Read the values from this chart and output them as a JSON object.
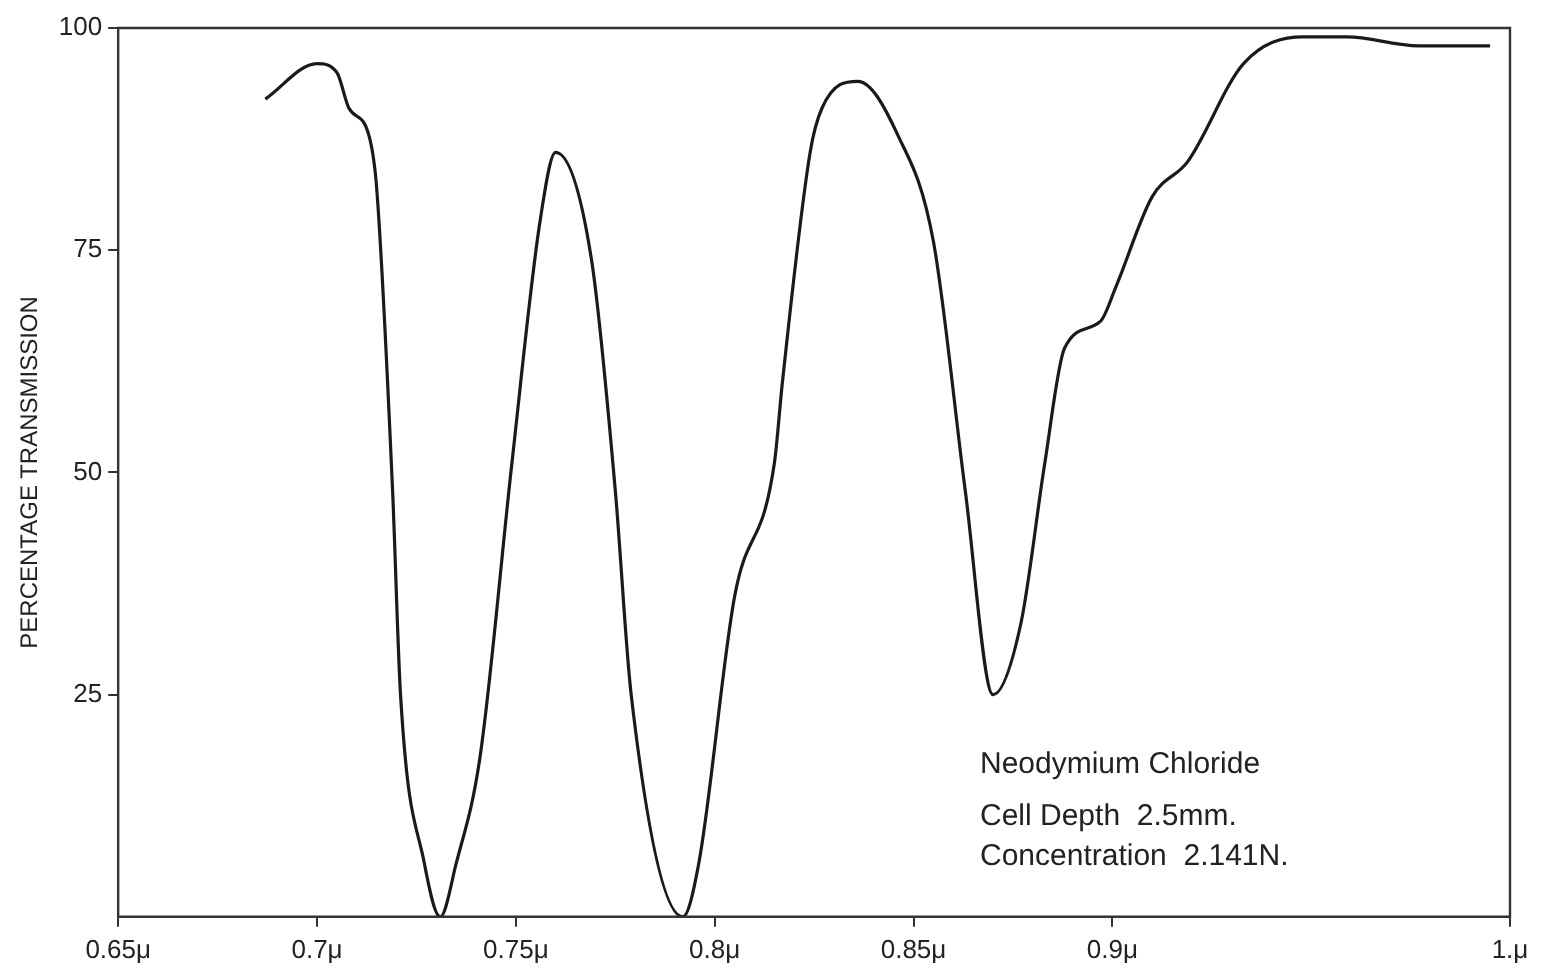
{
  "chart_data": {
    "type": "line",
    "ylabel": "PERCENTAGE TRANSMISSION",
    "x": [
      0.687,
      0.7,
      0.705,
      0.708,
      0.713,
      0.715,
      0.719,
      0.721,
      0.727,
      0.731,
      0.735,
      0.741,
      0.749,
      0.756,
      0.76,
      0.769,
      0.775,
      0.779,
      0.792,
      0.796,
      0.805,
      0.815,
      0.817,
      0.824,
      0.827,
      0.836,
      0.846,
      0.855,
      0.863,
      0.87,
      0.877,
      0.883,
      0.888,
      0.897,
      0.901,
      0.91,
      0.919,
      0.933,
      0.948,
      0.959,
      0.977,
      0.995
    ],
    "series": [
      {
        "color": "#1a1a1a",
        "values": [
          92,
          96,
          95,
          91,
          88,
          82,
          48,
          25,
          6,
          0,
          6,
          18,
          51,
          78,
          86,
          74,
          48,
          25,
          0,
          6,
          36,
          51,
          60,
          86,
          91,
          94,
          88,
          76,
          48,
          25,
          33,
          51,
          64,
          67,
          71,
          81,
          85,
          96,
          99,
          99,
          98,
          98
        ]
      }
    ],
    "xlim": [
      0.65,
      1.0
    ],
    "xticks": [
      {
        "value": 0.65,
        "label": "0.65μ"
      },
      {
        "value": 0.7,
        "label": "0.7μ"
      },
      {
        "value": 0.75,
        "label": "0.75μ"
      },
      {
        "value": 0.8,
        "label": "0.8μ"
      },
      {
        "value": 0.85,
        "label": "0.85μ"
      },
      {
        "value": 0.9,
        "label": "0.9μ"
      },
      {
        "value": 1.0,
        "label": "1.μ"
      }
    ],
    "ylim": [
      0,
      100
    ],
    "yticks": [
      25,
      50,
      75,
      100
    ],
    "annotations": [
      "Neodymium Chloride",
      "Cell Depth  2.5mm.",
      "Concentration  2.141N."
    ],
    "grid": false,
    "legend": false,
    "marker": "none",
    "line_style": "solid"
  }
}
